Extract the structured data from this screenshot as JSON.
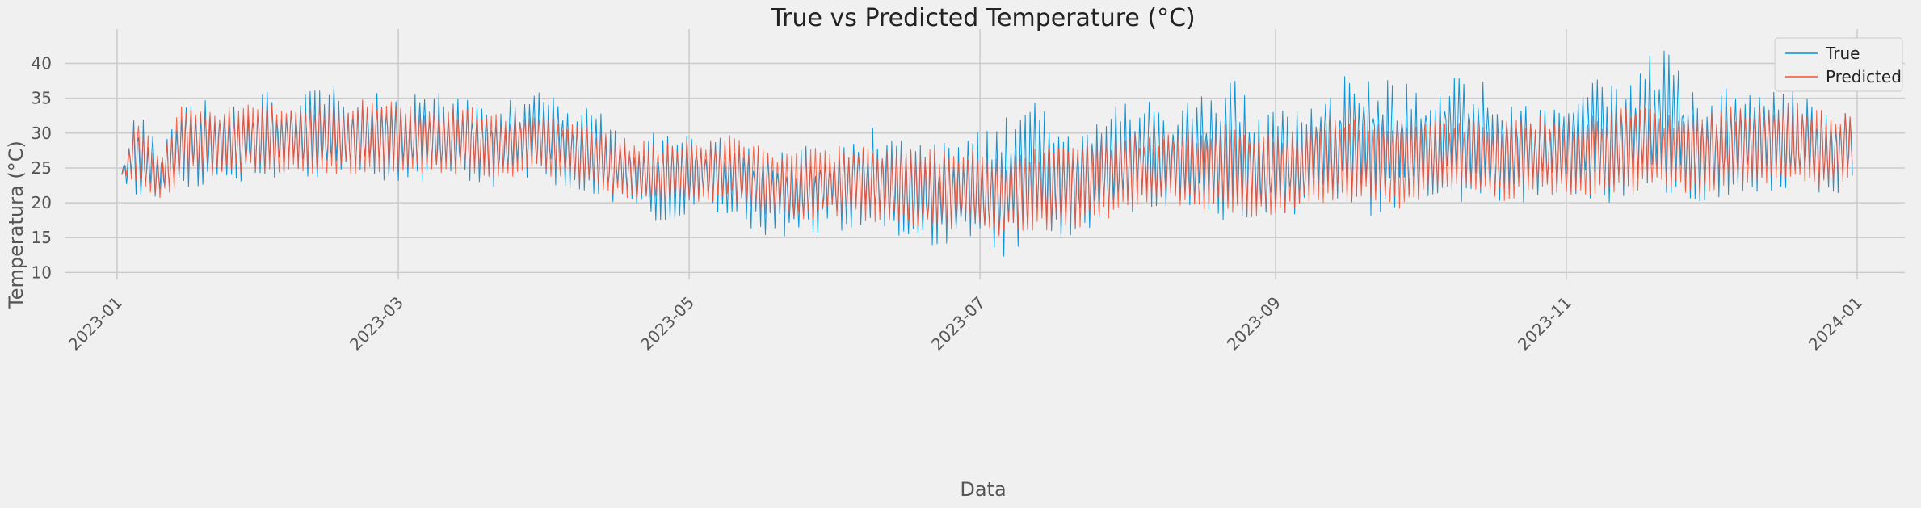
{
  "chart_data": {
    "type": "line",
    "title": "True vs Predicted Temperature (°C)",
    "xlabel": "Data",
    "ylabel": "Temperatura (°C)",
    "xlim": [
      "2022-12-21",
      "2024-01-11"
    ],
    "ylim": [
      9,
      44
    ],
    "x_ticks": [
      "2023-01",
      "2023-03",
      "2023-05",
      "2023-07",
      "2023-09",
      "2023-11",
      "2024-01"
    ],
    "y_ticks": [
      10,
      15,
      20,
      25,
      30,
      35,
      40
    ],
    "grid": true,
    "legend_position": "top-right",
    "colors": {
      "true": "#008fd5",
      "predicted": "#fc4f30",
      "background": "#f0f0f0",
      "grid": "#cbcbcb"
    },
    "series": [
      {
        "name": "True",
        "x": [
          "2023-01-02",
          "2023-01-05",
          "2023-01-10",
          "2023-01-15",
          "2023-01-20",
          "2023-01-25",
          "2023-02-01",
          "2023-02-08",
          "2023-02-15",
          "2023-02-22",
          "2023-03-01",
          "2023-03-08",
          "2023-03-15",
          "2023-03-22",
          "2023-03-29",
          "2023-04-05",
          "2023-04-12",
          "2023-04-19",
          "2023-04-26",
          "2023-05-03",
          "2023-05-10",
          "2023-05-17",
          "2023-05-24",
          "2023-05-31",
          "2023-06-07",
          "2023-06-14",
          "2023-06-21",
          "2023-06-28",
          "2023-07-05",
          "2023-07-12",
          "2023-07-19",
          "2023-07-26",
          "2023-08-02",
          "2023-08-09",
          "2023-08-16",
          "2023-08-23",
          "2023-08-30",
          "2023-09-06",
          "2023-09-13",
          "2023-09-20",
          "2023-09-27",
          "2023-10-04",
          "2023-10-11",
          "2023-10-18",
          "2023-10-25",
          "2023-11-01",
          "2023-11-08",
          "2023-11-15",
          "2023-11-22",
          "2023-11-29",
          "2023-12-06",
          "2023-12-13",
          "2023-12-20",
          "2023-12-27",
          "2023-12-31"
        ],
        "min": [
          24,
          20,
          19,
          22,
          22,
          23,
          23,
          23,
          22,
          23,
          23,
          23,
          23,
          22,
          23,
          22,
          20,
          18,
          17,
          19,
          18,
          15,
          14,
          16,
          15,
          15,
          13,
          14,
          11,
          13,
          14,
          16,
          18,
          19,
          18,
          17,
          16,
          18,
          19,
          18,
          18,
          20,
          20,
          19,
          20,
          20,
          20,
          19,
          21,
          20,
          21,
          21,
          21,
          21,
          22
        ],
        "max": [
          25,
          35,
          29,
          34,
          36,
          35,
          36,
          36,
          37,
          36,
          36,
          36,
          35,
          34,
          37,
          35,
          33,
          31,
          30,
          30,
          30,
          28,
          28,
          29,
          31,
          30,
          29,
          30,
          31,
          37,
          30,
          33,
          35,
          34,
          36,
          38,
          34,
          35,
          38,
          39,
          37,
          38,
          39,
          36,
          35,
          36,
          38,
          40,
          43,
          35,
          37,
          38,
          36,
          35,
          36
        ]
      },
      {
        "name": "Predicted",
        "x": [
          "2023-01-02",
          "2023-01-05",
          "2023-01-10",
          "2023-01-15",
          "2023-01-20",
          "2023-01-25",
          "2023-02-01",
          "2023-02-08",
          "2023-02-15",
          "2023-02-22",
          "2023-03-01",
          "2023-03-08",
          "2023-03-15",
          "2023-03-22",
          "2023-03-29",
          "2023-04-05",
          "2023-04-12",
          "2023-04-19",
          "2023-04-26",
          "2023-05-03",
          "2023-05-10",
          "2023-05-17",
          "2023-05-24",
          "2023-05-31",
          "2023-06-07",
          "2023-06-14",
          "2023-06-21",
          "2023-06-28",
          "2023-07-05",
          "2023-07-12",
          "2023-07-19",
          "2023-07-26",
          "2023-08-02",
          "2023-08-09",
          "2023-08-16",
          "2023-08-23",
          "2023-08-30",
          "2023-09-06",
          "2023-09-13",
          "2023-09-20",
          "2023-09-27",
          "2023-10-04",
          "2023-10-11",
          "2023-10-18",
          "2023-10-25",
          "2023-11-01",
          "2023-11-08",
          "2023-11-15",
          "2023-11-22",
          "2023-11-29",
          "2023-12-06",
          "2023-12-13",
          "2023-12-20",
          "2023-12-27",
          "2023-12-31"
        ],
        "min": [
          24,
          23,
          20,
          23,
          24,
          24,
          24,
          24,
          24,
          24,
          24,
          24,
          24,
          23,
          24,
          23,
          22,
          20,
          19,
          20,
          20,
          18,
          17,
          18,
          17,
          17,
          16,
          16,
          15,
          16,
          16,
          17,
          19,
          20,
          19,
          18,
          17,
          19,
          20,
          20,
          19,
          21,
          21,
          20,
          21,
          21,
          21,
          21,
          22,
          21,
          22,
          22,
          22,
          22,
          24
        ],
        "max": [
          24,
          33,
          27,
          35,
          34,
          34,
          35,
          34,
          35,
          35,
          35,
          34,
          34,
          33,
          34,
          32,
          31,
          29,
          29,
          29,
          30,
          28,
          28,
          28,
          29,
          28,
          28,
          28,
          27,
          28,
          29,
          30,
          30,
          30,
          31,
          32,
          30,
          31,
          32,
          33,
          32,
          32,
          32,
          32,
          33,
          32,
          33,
          34,
          33,
          33,
          34,
          35,
          35,
          33,
          33
        ]
      }
    ]
  }
}
